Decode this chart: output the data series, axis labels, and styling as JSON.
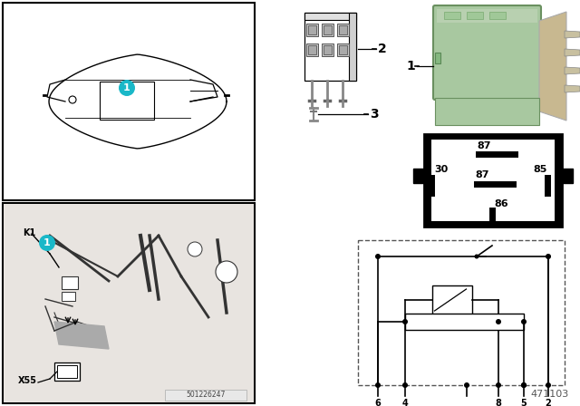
{
  "bg_color": "#ffffff",
  "doc_number": "471103",
  "watermark": "501226247",
  "cyan_color": "#1ab8c8",
  "relay_green": "#a8c8a0",
  "gray_bg": "#d0ccc8",
  "dark_line": "#333333",
  "med_gray": "#888888"
}
